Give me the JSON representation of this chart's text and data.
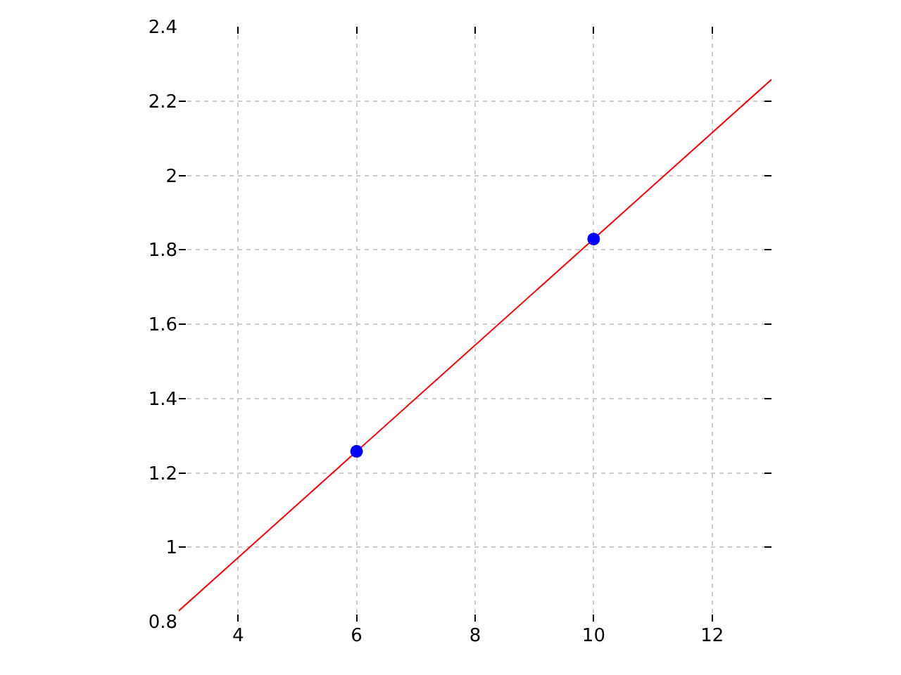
{
  "chart_data": {
    "type": "scatter",
    "xlim": [
      3,
      13
    ],
    "ylim": [
      0.8,
      2.4
    ],
    "xticks": [
      4,
      6,
      8,
      10,
      12
    ],
    "yticks": [
      {
        "value": 0.8,
        "label": "0.8"
      },
      1,
      {
        "value": 1.2,
        "label": "1.2"
      },
      {
        "value": 1.4,
        "label": "1.4"
      },
      {
        "value": 1.6,
        "label": "1.6"
      },
      {
        "value": 1.8,
        "label": "1.8"
      },
      2,
      {
        "value": 2.2,
        "label": "2.2"
      },
      {
        "value": 2.4,
        "label": "2.4"
      }
    ],
    "grid": true,
    "series": [
      {
        "type": "line",
        "color": "#ff0000",
        "x": [
          3,
          13
        ],
        "values": [
          0.829,
          2.258
        ],
        "marker": "none",
        "line_style": "solid"
      },
      {
        "color": "#0000ff",
        "x": [
          6,
          10
        ],
        "values": [
          1.258,
          1.829
        ],
        "marker": "circle"
      }
    ]
  }
}
